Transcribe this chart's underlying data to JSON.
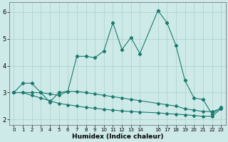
{
  "xlabel": "Humidex (Indice chaleur)",
  "background_color": "#ceeae8",
  "grid_color": "#aed4d0",
  "line_color": "#1a7a6e",
  "xlim": [
    -0.5,
    23.5
  ],
  "ylim": [
    1.8,
    6.35
  ],
  "yticks": [
    2,
    3,
    4,
    5,
    6
  ],
  "x_tick_positions": [
    0,
    1,
    2,
    3,
    4,
    5,
    6,
    7,
    8,
    9,
    10,
    11,
    12,
    13,
    14,
    16,
    17,
    18,
    19,
    20,
    21,
    22,
    23
  ],
  "x_tick_labels": [
    "0",
    "1",
    "2",
    "3",
    "4",
    "5",
    "6",
    "7",
    "8",
    "9",
    "10",
    "11",
    "12",
    "13",
    "14",
    "16",
    "17",
    "18",
    "19",
    "20",
    "21",
    "22",
    "23"
  ],
  "line1_x": [
    0,
    1,
    2,
    3,
    4,
    5,
    6,
    7,
    8,
    9,
    10,
    11,
    12,
    13,
    14,
    16,
    17,
    18,
    19,
    20,
    21,
    22,
    23
  ],
  "line1_y": [
    3.0,
    3.35,
    3.35,
    3.0,
    2.65,
    3.0,
    3.05,
    4.35,
    4.35,
    4.3,
    4.55,
    5.6,
    4.6,
    5.05,
    4.45,
    6.05,
    5.6,
    4.75,
    3.45,
    2.8,
    2.75,
    2.2,
    2.45
  ],
  "line2_x": [
    0,
    1,
    2,
    3,
    4,
    5,
    6,
    7,
    8,
    9,
    10,
    11,
    12,
    13,
    14,
    16,
    17,
    18,
    19,
    20,
    21,
    22,
    23
  ],
  "line2_y": [
    3.0,
    3.0,
    3.0,
    3.0,
    2.95,
    2.9,
    3.05,
    3.05,
    3.0,
    2.95,
    2.9,
    2.85,
    2.8,
    2.75,
    2.7,
    2.6,
    2.55,
    2.5,
    2.4,
    2.35,
    2.3,
    2.3,
    2.4
  ],
  "line3_x": [
    0,
    1,
    2,
    3,
    4,
    5,
    6,
    7,
    8,
    9,
    10,
    11,
    12,
    13,
    14,
    16,
    17,
    18,
    19,
    20,
    21,
    22,
    23
  ],
  "line3_y": [
    3.0,
    3.0,
    2.9,
    2.8,
    2.7,
    2.6,
    2.55,
    2.5,
    2.45,
    2.42,
    2.38,
    2.35,
    2.32,
    2.3,
    2.28,
    2.25,
    2.22,
    2.2,
    2.18,
    2.15,
    2.12,
    2.12,
    2.4
  ]
}
